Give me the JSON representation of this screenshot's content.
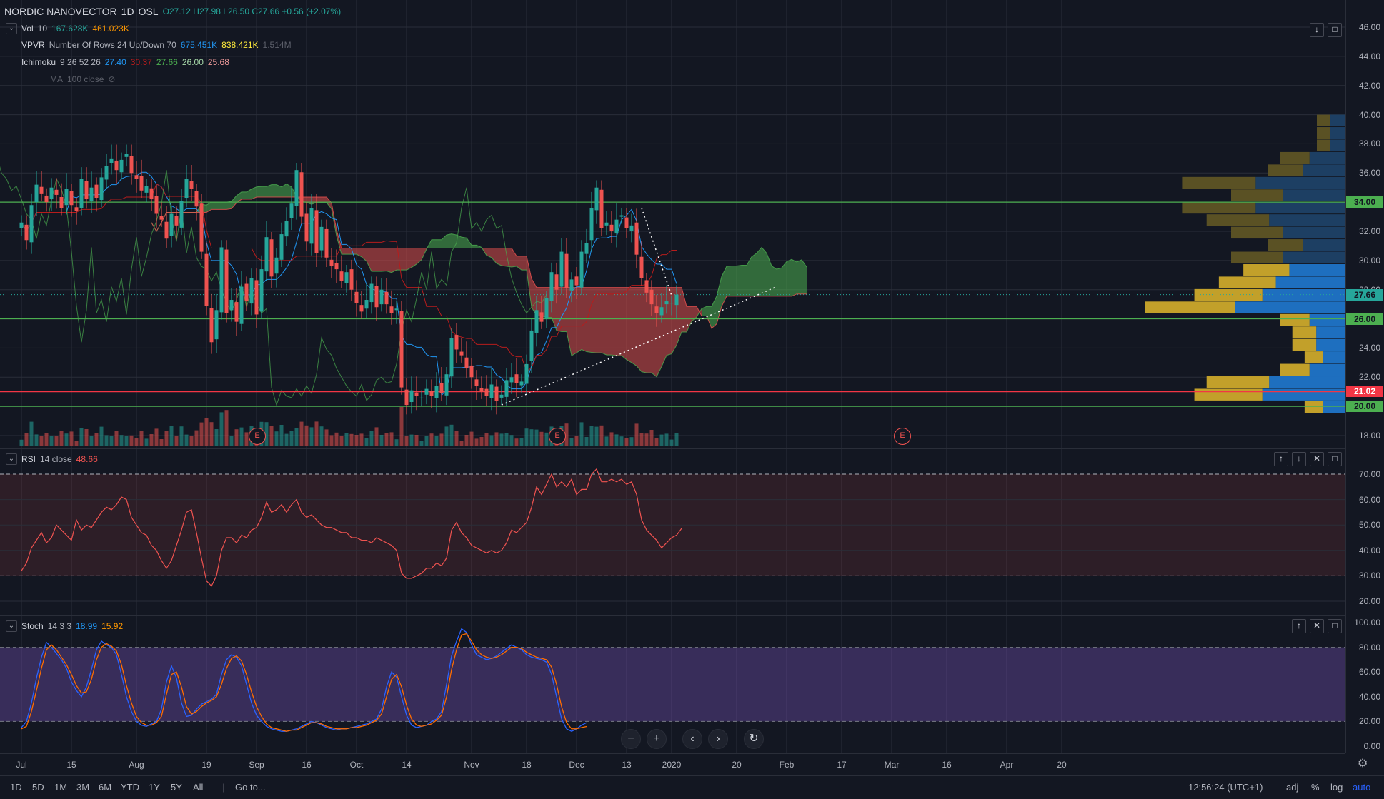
{
  "header": {
    "symbol": "NORDIC NANOVECTOR",
    "interval": "1D",
    "exchange": "OSL",
    "ohlc": "O27.12 H27.98 L26.50 C27.66 +0.56 (+2.07%)"
  },
  "indicators": {
    "vol": {
      "name": "Vol",
      "params": "10",
      "v1": "167.628K",
      "v2": "461.023K"
    },
    "vpvr": {
      "name": "VPVR",
      "params": "Number Of Rows 24 Up/Down 70",
      "v1": "675.451K",
      "v2": "838.421K",
      "v3": "1.514M"
    },
    "ichimoku": {
      "name": "Ichimoku",
      "params": "9 26 52 26",
      "v1": "27.40",
      "v2": "30.37",
      "v3": "27.66",
      "v4": "26.00",
      "v5": "25.68"
    },
    "ma": {
      "name": "MA",
      "params": "100 close"
    },
    "rsi": {
      "name": "RSI",
      "params": "14 close",
      "v1": "48.66"
    },
    "stoch": {
      "name": "Stoch",
      "params": "14 3 3",
      "v1": "18.99",
      "v2": "15.92"
    }
  },
  "price_axis": {
    "ticks": [
      "46.00",
      "44.00",
      "42.00",
      "40.00",
      "38.00",
      "36.00",
      "34.00",
      "32.00",
      "30.00",
      "28.00",
      "26.00",
      "24.00",
      "22.00",
      "20.00",
      "18.00"
    ],
    "labels": [
      {
        "text": "34.00",
        "value": 34.0,
        "color": "#4caf50"
      },
      {
        "text": "27.66",
        "value": 27.66,
        "color": "#26a69a"
      },
      {
        "text": "26.00",
        "value": 26.0,
        "color": "#4caf50"
      },
      {
        "text": "21.02",
        "value": 21.02,
        "color": "#f23645"
      },
      {
        "text": "20.00",
        "value": 20.0,
        "color": "#4caf50"
      }
    ]
  },
  "rsi_axis": {
    "ticks": [
      "70.00",
      "60.00",
      "50.00",
      "40.00",
      "30.00",
      "20.00"
    ]
  },
  "stoch_axis": {
    "ticks": [
      "100.00",
      "80.00",
      "60.00",
      "40.00",
      "20.00",
      "0.00"
    ]
  },
  "time_axis": {
    "ticks": [
      {
        "text": "Jul",
        "day": 0
      },
      {
        "text": "15",
        "day": 10
      },
      {
        "text": "Aug",
        "day": 23
      },
      {
        "text": "19",
        "day": 37
      },
      {
        "text": "Sep",
        "day": 47
      },
      {
        "text": "16",
        "day": 57
      },
      {
        "text": "Oct",
        "day": 67
      },
      {
        "text": "14",
        "day": 77
      },
      {
        "text": "Nov",
        "day": 90
      },
      {
        "text": "18",
        "day": 101
      },
      {
        "text": "Dec",
        "day": 111
      },
      {
        "text": "13",
        "day": 121
      },
      {
        "text": "2020",
        "day": 130
      },
      {
        "text": "20",
        "day": 143
      },
      {
        "text": "Feb",
        "day": 153
      },
      {
        "text": "17",
        "day": 164
      },
      {
        "text": "Mar",
        "day": 174
      },
      {
        "text": "16",
        "day": 185
      },
      {
        "text": "Apr",
        "day": 197
      },
      {
        "text": "20",
        "day": 208
      }
    ]
  },
  "bottom_bar": {
    "ranges": [
      "1D",
      "5D",
      "1M",
      "3M",
      "6M",
      "YTD",
      "1Y",
      "5Y",
      "All"
    ],
    "goto": "Go to...",
    "time": "12:56:24 (UTC+1)",
    "adj": "adj",
    "percent": "%",
    "log": "log",
    "auto": "auto"
  },
  "nav": {
    "minus": "−",
    "plus": "+",
    "left": "‹",
    "right": "›",
    "reset": "↻"
  },
  "earnings_marker": "E",
  "colors": {
    "up": "#26a69a",
    "down": "#ef5350",
    "bg": "#131722",
    "grid": "#2a2e39"
  },
  "chart_data": [
    {
      "type": "candlestick",
      "title": "NORDIC NANOVECTOR 1D OSL",
      "ylim": [
        17.5,
        46.5
      ],
      "x_unit": "trading day index",
      "horizontal_lines": [
        34.0,
        26.0,
        21.02,
        20.0
      ],
      "close": [
        32.6,
        31.4,
        33.8,
        35.2,
        34.6,
        34.0,
        35.0,
        34.5,
        33.6,
        34.9,
        33.8,
        33.4,
        35.6,
        34.2,
        35.0,
        34.3,
        35.7,
        36.5,
        37.0,
        36.2,
        36.9,
        37.3,
        36.0,
        35.6,
        34.8,
        35.1,
        34.2,
        33.2,
        32.8,
        31.5,
        33.2,
        32.4,
        34.1,
        35.6,
        34.9,
        33.7,
        30.6,
        26.9,
        24.4,
        26.6,
        30.9,
        26.4,
        27.3,
        25.8,
        28.2,
        27.2,
        28.8,
        26.3,
        29.4,
        31.6,
        28.9,
        30.2,
        31.8,
        32.7,
        33.9,
        36.2,
        33.0,
        31.3,
        33.6,
        30.5,
        32.3,
        30.2,
        29.6,
        29.4,
        28.6,
        29.2,
        28.0,
        27.1,
        26.5,
        27.3,
        28.4,
        26.8,
        28.0,
        27.0,
        26.4,
        26.7,
        21.3,
        20.1,
        21.1,
        20.7,
        20.6,
        21.2,
        20.7,
        21.4,
        20.9,
        22.2,
        24.7,
        23.9,
        23.5,
        22.6,
        22.0,
        21.4,
        21.0,
        20.7,
        21.5,
        20.4,
        20.8,
        21.8,
        22.0,
        21.6,
        21.7,
        22.9,
        25.2,
        26.6,
        25.8,
        27.4,
        29.2,
        28.0,
        30.6,
        28.1,
        28.7,
        28.3,
        30.6,
        31.2,
        33.6,
        35.0,
        32.2,
        32.6,
        32.0,
        32.8,
        33.1,
        32.2,
        32.4,
        30.4,
        28.8,
        27.8,
        27.0,
        26.4,
        26.8,
        27.2,
        27.1,
        27.66
      ],
      "volume_scale": "relative"
    },
    {
      "type": "line",
      "title": "RSI 14 close",
      "ylim": [
        17,
        75
      ],
      "bands": [
        30,
        70
      ],
      "values": [
        32,
        35,
        41,
        44,
        47,
        43,
        45,
        50,
        48,
        46,
        44,
        52,
        48,
        50,
        49,
        52,
        55,
        57,
        56,
        58,
        61,
        60,
        53,
        50,
        47,
        46,
        42,
        40,
        36,
        33,
        36,
        42,
        48,
        55,
        56,
        47,
        37,
        28,
        26,
        30,
        40,
        45,
        45,
        43,
        46,
        45,
        48,
        49,
        53,
        59,
        55,
        56,
        58,
        55,
        58,
        60,
        55,
        53,
        54,
        52,
        50,
        49,
        49,
        48,
        47,
        47,
        45,
        45,
        44,
        44,
        43,
        45,
        44,
        43,
        42,
        40,
        31,
        29,
        29,
        30,
        31,
        33,
        33,
        35,
        34,
        37,
        48,
        51,
        47,
        45,
        42,
        41,
        40,
        39,
        40,
        39,
        40,
        43,
        48,
        47,
        49,
        51,
        57,
        65,
        62,
        66,
        70,
        65,
        67,
        65,
        68,
        62,
        64,
        64,
        70,
        72,
        67,
        67,
        68,
        67,
        68,
        66,
        67,
        62,
        52,
        48,
        46,
        44,
        41,
        43,
        45,
        46,
        48.66
      ]
    },
    {
      "type": "line",
      "title": "Stoch 14 3 3",
      "ylim": [
        -1,
        101
      ],
      "bands": [
        20,
        80
      ],
      "series": [
        {
          "name": "%K",
          "color": "#2962ff",
          "values": [
            15,
            20,
            35,
            55,
            72,
            84,
            80,
            75,
            70,
            63,
            52,
            45,
            40,
            48,
            62,
            78,
            85,
            82,
            80,
            74,
            58,
            40,
            28,
            20,
            17,
            16,
            18,
            20,
            30,
            52,
            65,
            55,
            35,
            24,
            25,
            30,
            34,
            36,
            38,
            42,
            58,
            70,
            74,
            72,
            65,
            50,
            35,
            25,
            20,
            16,
            14,
            13,
            12,
            12,
            13,
            14,
            16,
            18,
            20,
            19,
            17,
            15,
            14,
            13,
            14,
            14,
            15,
            16,
            17,
            18,
            20,
            22,
            30,
            48,
            60,
            56,
            40,
            25,
            17,
            15,
            16,
            17,
            20,
            22,
            28,
            50,
            73,
            85,
            95,
            92,
            82,
            74,
            72,
            70,
            71,
            73,
            76,
            79,
            82,
            80,
            78,
            74,
            72,
            71,
            70,
            68,
            58,
            40,
            22,
            14,
            12,
            14,
            17,
            18.99
          ]
        },
        {
          "name": "%D",
          "color": "#ff6d00",
          "values": [
            14,
            16,
            28,
            45,
            63,
            78,
            82,
            78,
            72,
            66,
            58,
            49,
            43,
            44,
            54,
            70,
            80,
            83,
            81,
            77,
            66,
            49,
            35,
            24,
            19,
            17,
            17,
            19,
            24,
            42,
            58,
            60,
            48,
            32,
            26,
            28,
            32,
            35,
            37,
            40,
            50,
            63,
            71,
            73,
            69,
            58,
            44,
            32,
            24,
            18,
            15,
            14,
            13,
            12,
            13,
            13,
            15,
            17,
            19,
            19,
            18,
            16,
            15,
            14,
            14,
            14,
            15,
            15,
            16,
            17,
            19,
            21,
            26,
            40,
            54,
            58,
            48,
            33,
            22,
            17,
            16,
            17,
            18,
            21,
            25,
            40,
            62,
            78,
            90,
            91,
            85,
            78,
            74,
            72,
            71,
            72,
            74,
            77,
            80,
            80,
            79,
            76,
            74,
            72,
            71,
            70,
            64,
            50,
            32,
            19,
            14,
            14,
            15,
            15.92
          ]
        }
      ]
    }
  ]
}
